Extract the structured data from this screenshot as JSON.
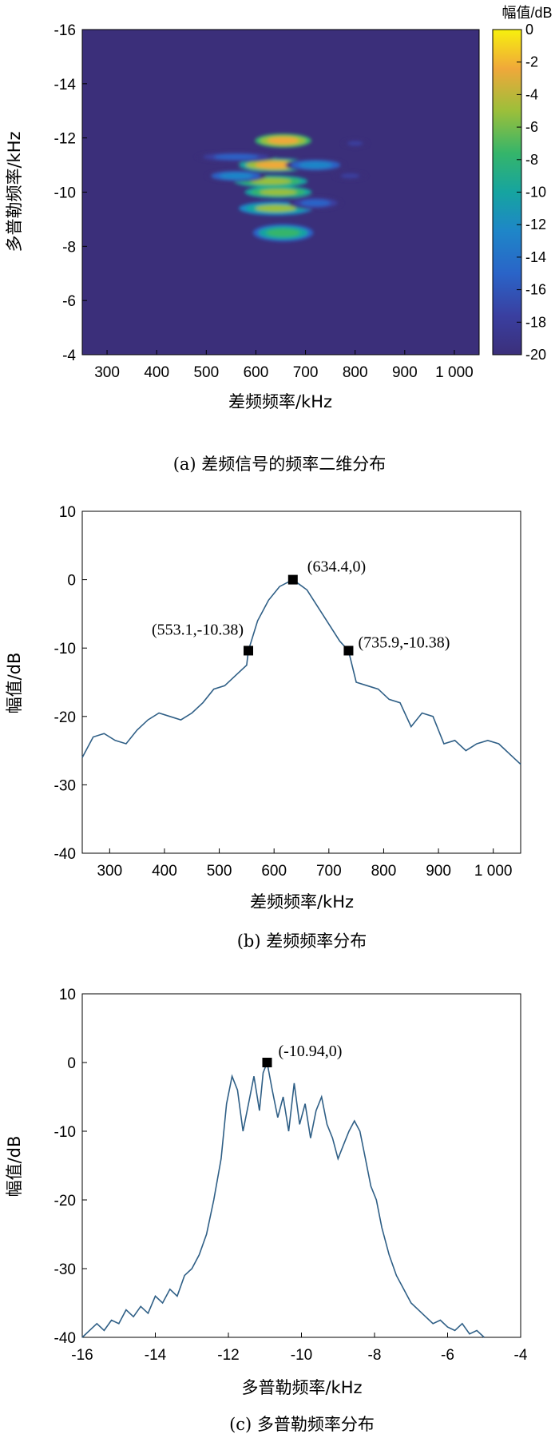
{
  "chart_data": [
    {
      "type": "heatmap",
      "caption": "(a) 差频信号的频率二维分布",
      "xlabel": "差频频率/kHz",
      "ylabel": "多普勒频率/kHz",
      "xlim": [
        250,
        1050
      ],
      "ylim": [
        -16,
        -4
      ],
      "xticks": [
        "300",
        "400",
        "500",
        "600",
        "700",
        "800",
        "900",
        "1 000"
      ],
      "yticks": [
        "-16",
        "-14",
        "-12",
        "-10",
        "-8",
        "-6",
        "-4"
      ],
      "colorbar": {
        "label": "幅值/dB",
        "range": [
          -20,
          0
        ],
        "ticks": [
          "0",
          "-2",
          "-4",
          "-6",
          "-8",
          "-10",
          "-12",
          "-14",
          "-16",
          "-18",
          "-20"
        ]
      },
      "background_color": "#3b2f7a",
      "blobs": [
        {
          "x": 655,
          "y": -11.9,
          "sx": 42,
          "sy": 0.16,
          "v": -1
        },
        {
          "x": 640,
          "y": -11.0,
          "sx": 55,
          "sy": 0.16,
          "v": -2
        },
        {
          "x": 630,
          "y": -10.4,
          "sx": 55,
          "sy": 0.14,
          "v": -4
        },
        {
          "x": 645,
          "y": -10.0,
          "sx": 50,
          "sy": 0.14,
          "v": -3
        },
        {
          "x": 640,
          "y": -9.4,
          "sx": 55,
          "sy": 0.16,
          "v": -5
        },
        {
          "x": 655,
          "y": -8.5,
          "sx": 45,
          "sy": 0.2,
          "v": -7
        },
        {
          "x": 560,
          "y": -11.3,
          "sx": 60,
          "sy": 0.12,
          "v": -14
        },
        {
          "x": 560,
          "y": -10.6,
          "sx": 45,
          "sy": 0.14,
          "v": -12
        },
        {
          "x": 720,
          "y": -11.0,
          "sx": 45,
          "sy": 0.15,
          "v": -12
        },
        {
          "x": 720,
          "y": -9.6,
          "sx": 40,
          "sy": 0.15,
          "v": -13
        },
        {
          "x": 800,
          "y": -11.8,
          "sx": 20,
          "sy": 0.1,
          "v": -17
        },
        {
          "x": 790,
          "y": -10.6,
          "sx": 25,
          "sy": 0.1,
          "v": -17
        }
      ]
    },
    {
      "type": "line",
      "caption": "(b) 差频频率分布",
      "xlabel": "差频频率/kHz",
      "ylabel": "幅值/dB",
      "xlim": [
        250,
        1050
      ],
      "ylim": [
        -40,
        10
      ],
      "xticks": [
        "300",
        "400",
        "500",
        "600",
        "700",
        "800",
        "900",
        "1 000"
      ],
      "yticks": [
        "10",
        "0",
        "-10",
        "-20",
        "-30",
        "-40"
      ],
      "x": [
        250,
        270,
        290,
        310,
        330,
        350,
        370,
        390,
        410,
        430,
        450,
        470,
        490,
        510,
        530,
        550,
        553.1,
        570,
        590,
        610,
        634.4,
        660,
        680,
        700,
        720,
        735.9,
        750,
        770,
        790,
        810,
        830,
        850,
        870,
        890,
        910,
        930,
        950,
        970,
        990,
        1010,
        1030,
        1050
      ],
      "y": [
        -26,
        -23,
        -22.5,
        -23.5,
        -24,
        -22,
        -20.5,
        -19.5,
        -20,
        -20.5,
        -19.5,
        -18,
        -16,
        -15.5,
        -14,
        -12.5,
        -10.38,
        -6,
        -3,
        -1,
        0,
        -1.5,
        -4,
        -6.5,
        -9,
        -10.38,
        -15,
        -15.5,
        -16,
        -17.5,
        -18,
        -21.5,
        -19.5,
        -20,
        -24,
        -23.5,
        -25,
        -24,
        -23.5,
        -24,
        -25.5,
        -27
      ],
      "markers": [
        {
          "x": 553.1,
          "y": -10.38,
          "label": "(553.1,-10.38)"
        },
        {
          "x": 634.4,
          "y": 0,
          "label": "(634.4,0)"
        },
        {
          "x": 735.9,
          "y": -10.38,
          "label": "(735.9,-10.38)"
        }
      ],
      "line_color": "#2f5f86"
    },
    {
      "type": "line",
      "caption": "(c) 多普勒频率分布",
      "xlabel": "多普勒频率/kHz",
      "ylabel": "幅值/dB",
      "xlim": [
        -16,
        -4
      ],
      "ylim": [
        -40,
        10
      ],
      "xticks": [
        "-16",
        "-14",
        "-12",
        "-10",
        "-8",
        "-6",
        "-4"
      ],
      "yticks": [
        "10",
        "0",
        "-10",
        "-20",
        "-30",
        "-40"
      ],
      "x": [
        -16,
        -15.8,
        -15.6,
        -15.4,
        -15.2,
        -15,
        -14.8,
        -14.6,
        -14.4,
        -14.2,
        -14,
        -13.8,
        -13.6,
        -13.4,
        -13.2,
        -13,
        -12.8,
        -12.6,
        -12.4,
        -12.2,
        -12.05,
        -11.9,
        -11.75,
        -11.6,
        -11.45,
        -11.3,
        -11.15,
        -11.05,
        -10.94,
        -10.8,
        -10.65,
        -10.5,
        -10.35,
        -10.2,
        -10.05,
        -9.9,
        -9.75,
        -9.6,
        -9.45,
        -9.3,
        -9.15,
        -9,
        -8.85,
        -8.7,
        -8.55,
        -8.4,
        -8.25,
        -8.1,
        -7.95,
        -7.8,
        -7.6,
        -7.4,
        -7.2,
        -7,
        -6.8,
        -6.6,
        -6.4,
        -6.2,
        -6,
        -5.8,
        -5.6,
        -5.4,
        -5.2,
        -5
      ],
      "y": [
        -40,
        -39,
        -38,
        -39,
        -37.5,
        -38,
        -36,
        -37,
        -35.5,
        -36.5,
        -34,
        -35,
        -33,
        -34,
        -31,
        -30,
        -28,
        -25,
        -20,
        -14,
        -6,
        -2,
        -4,
        -10,
        -6,
        -2,
        -7,
        -1.5,
        0,
        -4,
        -8,
        -5,
        -10,
        -3,
        -9,
        -6,
        -11,
        -7,
        -5,
        -9,
        -11,
        -14,
        -12,
        -10,
        -8.5,
        -10,
        -14,
        -18,
        -20,
        -24,
        -28,
        -31,
        -33,
        -35,
        -36,
        -37,
        -38,
        -37.5,
        -38.5,
        -39,
        -38,
        -39.5,
        -39,
        -40
      ],
      "markers": [
        {
          "x": -10.94,
          "y": 0,
          "label": "(-10.94,0)"
        }
      ],
      "line_color": "#2f5f86"
    }
  ]
}
